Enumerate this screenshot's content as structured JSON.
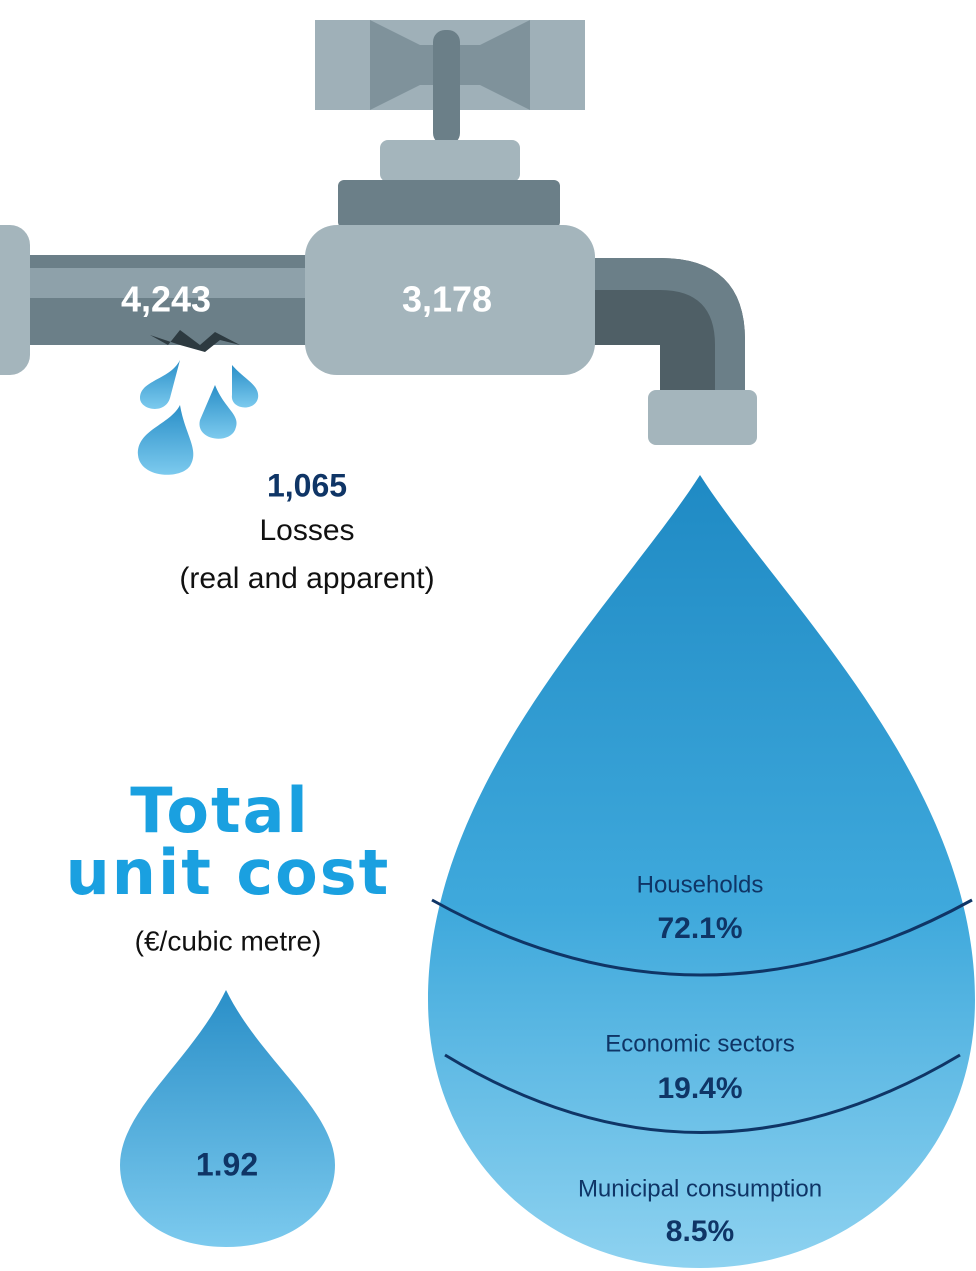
{
  "pipe": {
    "input": "4,243",
    "output": "3,178"
  },
  "losses": {
    "value": "1,065",
    "label": "Losses",
    "note": "(real and apparent)"
  },
  "unit_cost": {
    "title": [
      "Total",
      "unit cost"
    ],
    "unit": "(€/cubic metre)",
    "value": "1.92"
  },
  "uses": [
    {
      "name": "Households",
      "share": "72.1%"
    },
    {
      "name": "Economic sectors",
      "share": "19.4%"
    },
    {
      "name": "Municipal consumption",
      "share": "8.5%"
    }
  ]
}
